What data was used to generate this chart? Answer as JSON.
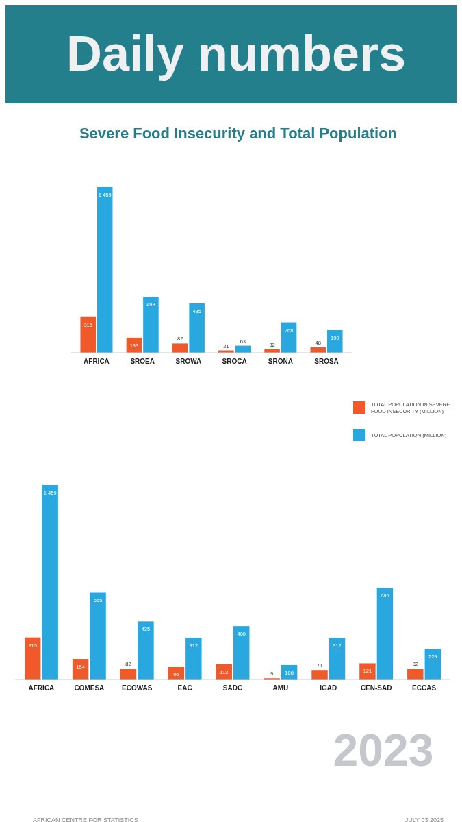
{
  "chart_data": [
    {
      "type": "bar",
      "title": "Daily numbers",
      "subtitle": "Severe Food Insecurity and Total Population",
      "categories": [
        "AFRICA",
        "SROEA",
        "SROWA",
        "SROCA",
        "SRONA",
        "SROSA"
      ],
      "series": [
        {
          "color": "#f05a2a",
          "values": [
            315,
            133,
            82,
            21,
            32,
            48
          ]
        },
        {
          "color": "#29a8e0",
          "values": [
            1459,
            493,
            435,
            63,
            268,
            199
          ]
        }
      ],
      "tick_labels": "x",
      "data_labels": true
    },
    {
      "type": "bar",
      "categories": [
        "AFRICA",
        "COMESA",
        "ECOWAS",
        "EAC",
        "SADC",
        "AMU",
        "IGAD",
        "CEN-SAD",
        "ECCAS"
      ],
      "series": [
        {
          "name": "TOTAL POPULATION IN SEVERE FOOD INSECURITY (MILLION)",
          "color": "#f05a2a",
          "values": [
            315,
            154,
            82,
            96,
            113,
            9,
            71,
            121,
            82
          ]
        },
        {
          "name": "TOTAL POPULATION (MILLION)",
          "color": "#29a8e0",
          "values": [
            1459,
            655,
            435,
            312,
            400,
            108,
            312,
            686,
            229
          ]
        }
      ],
      "tick_labels": "x",
      "data_labels": true,
      "legend": "top right",
      "annotations": [
        "2023",
        "AFRICAN CENTRE FOR STATISTICS",
        "JULY 03 2025"
      ]
    }
  ]
}
